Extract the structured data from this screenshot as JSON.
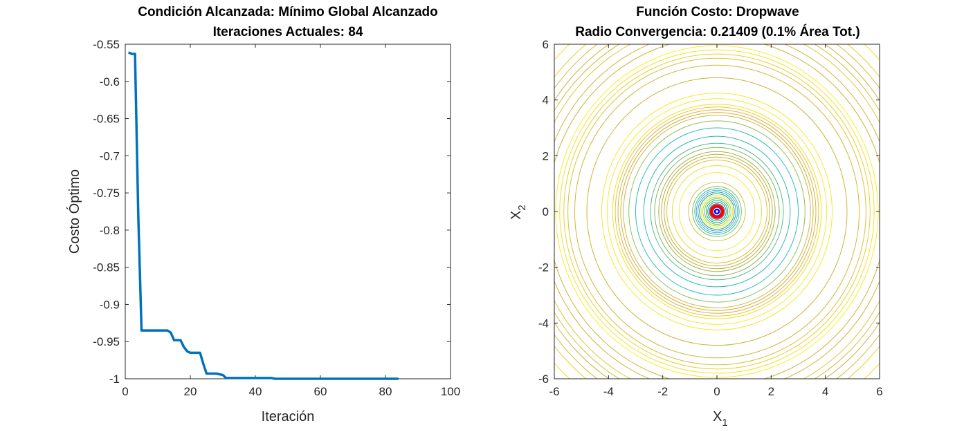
{
  "chart_data": [
    {
      "type": "line",
      "title_line1": "Condición Alcanzada: Mínimo Global Alcanzado",
      "title_line2": "Iteraciones Actuales: 84",
      "xlabel": "Iteración",
      "ylabel": "Costo Óptimo",
      "xlim": [
        0,
        100
      ],
      "ylim": [
        -1,
        -0.55
      ],
      "xticks": [
        "0",
        "20",
        "40",
        "60",
        "80",
        "100"
      ],
      "yticks": [
        "-0.55",
        "-0.6",
        "-0.65",
        "-0.7",
        "-0.75",
        "-0.8",
        "-0.85",
        "-0.9",
        "-0.95",
        "-1"
      ],
      "line_color": "#0072BD",
      "series": [
        {
          "x": [
            1,
            2,
            3,
            4,
            5,
            6,
            7,
            8,
            9,
            10,
            11,
            12,
            13,
            14,
            15,
            16,
            17,
            18,
            19,
            20,
            21,
            22,
            23,
            24,
            25,
            26,
            27,
            28,
            29,
            30,
            31,
            40,
            45,
            46,
            84
          ],
          "y": [
            -0.561,
            -0.563,
            -0.563,
            -0.78,
            -0.935,
            -0.935,
            -0.935,
            -0.935,
            -0.935,
            -0.935,
            -0.935,
            -0.935,
            -0.935,
            -0.938,
            -0.948,
            -0.948,
            -0.948,
            -0.957,
            -0.963,
            -0.965,
            -0.965,
            -0.965,
            -0.965,
            -0.98,
            -0.993,
            -0.993,
            -0.993,
            -0.993,
            -0.994,
            -0.995,
            -0.999,
            -0.999,
            -0.999,
            -1.0,
            -1.0
          ]
        }
      ]
    },
    {
      "type": "contour",
      "title_line1": "Función Costo: Dropwave",
      "title_line2": "Radio Convergencia: 0.21409 (0.1% Área Tot.)",
      "xlabel": "X",
      "xlabel_sub": "1",
      "ylabel": "X",
      "ylabel_sub": "2",
      "xlim": [
        -6,
        6
      ],
      "ylim": [
        -6,
        6
      ],
      "xticks": [
        "-6",
        "-4",
        "-2",
        "0",
        "2",
        "4",
        "6"
      ],
      "yticks": [
        "6",
        "4",
        "2",
        "0",
        "-2",
        "-4",
        "-6"
      ],
      "convergence_radius": 0.21409,
      "convergence_color": "#FF0000",
      "best_point": {
        "x": 0,
        "y": 0,
        "color": "#0000FF"
      },
      "contour_radii": [
        0.15,
        0.22,
        0.28,
        0.34,
        0.4,
        0.46,
        0.52,
        0.58,
        0.64,
        0.7,
        0.76,
        0.82,
        0.9,
        1.05,
        1.4,
        1.65,
        1.85,
        1.95,
        2.05,
        2.15,
        2.3,
        2.45,
        2.7,
        3.0,
        3.25,
        3.45,
        3.55,
        3.65,
        3.75,
        3.85,
        4.05,
        4.25,
        4.8,
        5.25,
        5.5,
        5.65,
        5.8,
        5.95,
        6.25,
        6.5,
        6.8,
        7.0,
        7.2,
        7.45,
        7.7,
        8.1
      ],
      "contour_colors": [
        "#440154",
        "#3b528b",
        "#2c728e",
        "#21918c",
        "#28ae80",
        "#5ec962",
        "#addc30",
        "#fde725",
        "#1fa187",
        "#3b9bd6",
        "#4bb3c8",
        "#32c0a8",
        "#7ac25a",
        "#d8c040",
        "#fbe83a",
        "#eadc30",
        "#d9c232",
        "#c7b035",
        "#b8b43f",
        "#a2b443",
        "#7fb860",
        "#4fbc8c",
        "#30b8b0",
        "#2ebcbc",
        "#8dbf5c",
        "#c9b840",
        "#d4ad3a",
        "#d9b33a",
        "#e5c82e",
        "#f2de28",
        "#fae82a",
        "#fce526",
        "#c9b636",
        "#d5b438",
        "#ddc033",
        "#e8d02d",
        "#f5e02a",
        "#faec28",
        "#d4b03a",
        "#d9b23a",
        "#e4c633",
        "#d8ba36",
        "#d0b03a",
        "#dcb838",
        "#e8cc30",
        "#f0dc2b"
      ]
    }
  ]
}
